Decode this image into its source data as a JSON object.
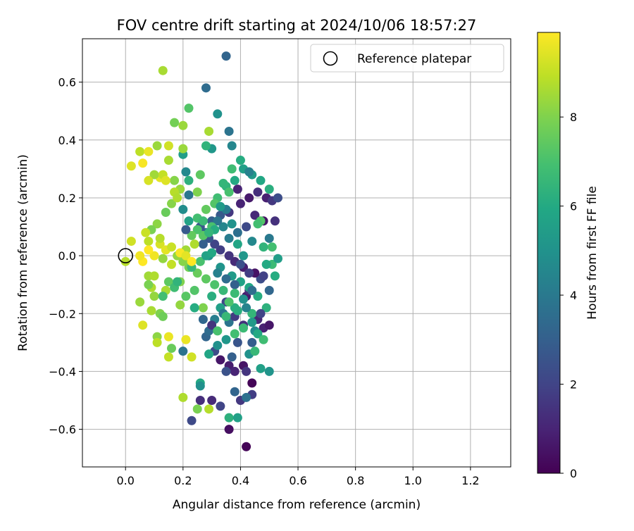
{
  "chart_data": {
    "type": "scatter",
    "title": "FOV centre drift starting at 2024/10/06 18:57:27",
    "xlabel": "Angular distance from reference (arcmin)",
    "ylabel": "Rotation from reference (arcmin)",
    "xlim": [
      -0.15,
      1.34
    ],
    "ylim": [
      -0.73,
      0.75
    ],
    "xticks": [
      0.0,
      0.2,
      0.4,
      0.6,
      0.8,
      1.0,
      1.2
    ],
    "xtick_labels": [
      "0.0",
      "0.2",
      "0.4",
      "0.6",
      "0.8",
      "1.0",
      "1.2"
    ],
    "yticks": [
      -0.6,
      -0.4,
      -0.2,
      0.0,
      0.2,
      0.4,
      0.6
    ],
    "ytick_labels": [
      "−0.6",
      "−0.4",
      "−0.2",
      "0.0",
      "0.2",
      "0.4",
      "0.6"
    ],
    "grid": true,
    "legend": {
      "position": "top-right",
      "entries": [
        "Reference platepar"
      ]
    },
    "reference_point": {
      "x": 0.0,
      "y": 0.0
    },
    "colorbar": {
      "label": "Hours from first FF file",
      "min": 0,
      "max": 9.9,
      "ticks": [
        0,
        2,
        4,
        6,
        8
      ],
      "tick_labels": [
        "0",
        "2",
        "4",
        "6",
        "8"
      ],
      "colormap": "viridis"
    },
    "points": [
      [
        0.42,
        -0.66,
        0.1
      ],
      [
        0.36,
        -0.6,
        0.4
      ],
      [
        0.44,
        -0.44,
        0.1
      ],
      [
        0.41,
        -0.38,
        0.5
      ],
      [
        0.33,
        -0.36,
        0.6
      ],
      [
        0.36,
        -0.38,
        0.8
      ],
      [
        0.38,
        -0.4,
        1.0
      ],
      [
        0.3,
        -0.5,
        1.2
      ],
      [
        0.26,
        -0.5,
        1.3
      ],
      [
        0.42,
        -0.4,
        1.5
      ],
      [
        0.4,
        -0.5,
        1.6
      ],
      [
        0.44,
        -0.48,
        1.8
      ],
      [
        0.33,
        -0.52,
        2.0
      ],
      [
        0.23,
        -0.57,
        2.2
      ],
      [
        0.35,
        -0.4,
        2.5
      ],
      [
        0.31,
        -0.33,
        2.3
      ],
      [
        0.39,
        -0.3,
        2.6
      ],
      [
        0.41,
        -0.24,
        1.4
      ],
      [
        0.46,
        -0.22,
        1.1
      ],
      [
        0.48,
        -0.25,
        0.9
      ],
      [
        0.5,
        -0.24,
        0.6
      ],
      [
        0.44,
        -0.3,
        2.9
      ],
      [
        0.37,
        -0.35,
        3.0
      ],
      [
        0.28,
        -0.28,
        3.2
      ],
      [
        0.29,
        -0.26,
        3.5
      ],
      [
        0.36,
        -0.23,
        3.8
      ],
      [
        0.31,
        -0.22,
        4.2
      ],
      [
        0.38,
        -0.21,
        1.7
      ],
      [
        0.35,
        -0.16,
        2.1
      ],
      [
        0.42,
        -0.14,
        0.7
      ],
      [
        0.43,
        -0.12,
        1.3
      ],
      [
        0.47,
        -0.08,
        2.4
      ],
      [
        0.48,
        -0.07,
        1.9
      ],
      [
        0.45,
        -0.06,
        0.5
      ],
      [
        0.41,
        -0.04,
        0.8
      ],
      [
        0.38,
        -0.02,
        1.2
      ],
      [
        0.36,
        0.0,
        1.5
      ],
      [
        0.33,
        0.02,
        1.8
      ],
      [
        0.31,
        0.04,
        2.0
      ],
      [
        0.29,
        0.06,
        2.6
      ],
      [
        0.27,
        0.04,
        3.0
      ],
      [
        0.28,
        0.08,
        3.4
      ],
      [
        0.26,
        0.1,
        2.7
      ],
      [
        0.3,
        0.12,
        3.1
      ],
      [
        0.33,
        0.14,
        2.8
      ],
      [
        0.36,
        0.15,
        1.6
      ],
      [
        0.4,
        0.18,
        1.0
      ],
      [
        0.43,
        0.2,
        0.7
      ],
      [
        0.46,
        0.22,
        1.3
      ],
      [
        0.49,
        0.2,
        0.9
      ],
      [
        0.51,
        0.19,
        1.6
      ],
      [
        0.48,
        0.12,
        0.5
      ],
      [
        0.45,
        0.14,
        1.1
      ],
      [
        0.42,
        0.1,
        2.2
      ],
      [
        0.39,
        0.08,
        3.6
      ],
      [
        0.36,
        0.06,
        4.1
      ],
      [
        0.34,
        0.1,
        4.5
      ],
      [
        0.32,
        0.12,
        3.9
      ],
      [
        0.29,
        0.0,
        4.8
      ],
      [
        0.33,
        -0.04,
        5.1
      ],
      [
        0.37,
        -0.07,
        5.4
      ],
      [
        0.4,
        -0.09,
        5.7
      ],
      [
        0.43,
        -0.11,
        5.9
      ],
      [
        0.46,
        -0.14,
        6.1
      ],
      [
        0.49,
        -0.18,
        6.3
      ],
      [
        0.44,
        -0.2,
        6.5
      ],
      [
        0.41,
        -0.25,
        6.7
      ],
      [
        0.38,
        -0.27,
        6.9
      ],
      [
        0.35,
        -0.29,
        5.2
      ],
      [
        0.32,
        -0.31,
        4.9
      ],
      [
        0.29,
        -0.34,
        5.8
      ],
      [
        0.26,
        -0.44,
        6.0
      ],
      [
        0.38,
        -0.18,
        6.2
      ],
      [
        0.34,
        -0.12,
        6.6
      ],
      [
        0.31,
        -0.1,
        7.1
      ],
      [
        0.28,
        -0.08,
        7.4
      ],
      [
        0.25,
        -0.06,
        7.6
      ],
      [
        0.22,
        -0.04,
        7.8
      ],
      [
        0.2,
        -0.02,
        8.1
      ],
      [
        0.18,
        0.0,
        8.3
      ],
      [
        0.21,
        0.02,
        8.5
      ],
      [
        0.24,
        0.04,
        8.7
      ],
      [
        0.27,
        0.07,
        7.3
      ],
      [
        0.3,
        0.1,
        7.0
      ],
      [
        0.32,
        0.2,
        6.8
      ],
      [
        0.35,
        0.24,
        6.4
      ],
      [
        0.38,
        0.26,
        6.0
      ],
      [
        0.41,
        0.3,
        5.6
      ],
      [
        0.44,
        0.28,
        5.3
      ],
      [
        0.47,
        0.26,
        5.9
      ],
      [
        0.5,
        0.23,
        6.2
      ],
      [
        0.53,
        0.2,
        2.3
      ],
      [
        0.52,
        0.12,
        1.4
      ],
      [
        0.5,
        0.06,
        4.0
      ],
      [
        0.48,
        0.03,
        6.4
      ],
      [
        0.51,
        -0.03,
        6.7
      ],
      [
        0.53,
        -0.01,
        5.5
      ],
      [
        0.52,
        -0.07,
        6.1
      ],
      [
        0.5,
        -0.12,
        3.3
      ],
      [
        0.47,
        -0.2,
        2.0
      ],
      [
        0.45,
        -0.26,
        4.7
      ],
      [
        0.43,
        -0.34,
        5.0
      ],
      [
        0.47,
        -0.39,
        5.6
      ],
      [
        0.5,
        -0.4,
        5.1
      ],
      [
        0.45,
        -0.33,
        6.6
      ],
      [
        0.35,
        0.69,
        3.2
      ],
      [
        0.28,
        0.58,
        3.5
      ],
      [
        0.32,
        0.49,
        5.0
      ],
      [
        0.36,
        0.43,
        3.8
      ],
      [
        0.37,
        0.38,
        4.5
      ],
      [
        0.3,
        0.37,
        5.2
      ],
      [
        0.28,
        0.38,
        6.4
      ],
      [
        0.4,
        0.33,
        6.1
      ],
      [
        0.43,
        0.29,
        4.3
      ],
      [
        0.37,
        0.3,
        6.8
      ],
      [
        0.34,
        0.25,
        6.5
      ],
      [
        0.36,
        0.22,
        7.0
      ],
      [
        0.39,
        0.23,
        1.0
      ],
      [
        0.31,
        0.18,
        7.2
      ],
      [
        0.28,
        0.16,
        7.5
      ],
      [
        0.25,
        0.13,
        6.9
      ],
      [
        0.22,
        0.12,
        5.7
      ],
      [
        0.2,
        0.16,
        4.8
      ],
      [
        0.22,
        0.21,
        3.9
      ],
      [
        0.21,
        0.29,
        4.6
      ],
      [
        0.22,
        0.26,
        6.3
      ],
      [
        0.2,
        0.35,
        5.5
      ],
      [
        0.22,
        0.51,
        7.2
      ],
      [
        0.2,
        0.45,
        8.4
      ],
      [
        0.17,
        0.46,
        7.8
      ],
      [
        0.13,
        0.64,
        8.6
      ],
      [
        0.29,
        0.43,
        8.6
      ],
      [
        0.26,
        0.28,
        7.4
      ],
      [
        0.25,
        0.22,
        8.0
      ],
      [
        0.19,
        0.23,
        8.4
      ],
      [
        0.17,
        0.22,
        8.8
      ],
      [
        0.16,
        0.18,
        8.1
      ],
      [
        0.14,
        0.15,
        7.6
      ],
      [
        0.11,
        0.11,
        8.2
      ],
      [
        0.09,
        0.09,
        7.9
      ],
      [
        0.08,
        0.05,
        8.9
      ],
      [
        0.07,
        0.08,
        9.1
      ],
      [
        0.12,
        0.04,
        9.3
      ],
      [
        0.14,
        0.02,
        9.5
      ],
      [
        0.1,
        0.0,
        9.7
      ],
      [
        0.06,
        -0.02,
        9.9
      ],
      [
        0.02,
        0.05,
        9.2
      ],
      [
        0.0,
        -0.02,
        8.8
      ],
      [
        0.08,
        -0.07,
        8.5
      ],
      [
        0.09,
        -0.11,
        8.7
      ],
      [
        0.1,
        -0.14,
        8.3
      ],
      [
        0.12,
        -0.2,
        8.0
      ],
      [
        0.13,
        -0.21,
        7.7
      ],
      [
        0.09,
        -0.19,
        8.6
      ],
      [
        0.05,
        -0.16,
        8.4
      ],
      [
        0.06,
        -0.24,
        9.4
      ],
      [
        0.11,
        -0.28,
        8.2
      ],
      [
        0.11,
        -0.3,
        8.9
      ],
      [
        0.15,
        -0.28,
        9.6
      ],
      [
        0.16,
        -0.32,
        7.6
      ],
      [
        0.15,
        -0.35,
        9.0
      ],
      [
        0.2,
        -0.33,
        3.8
      ],
      [
        0.23,
        -0.35,
        9.2
      ],
      [
        0.21,
        -0.29,
        9.6
      ],
      [
        0.2,
        -0.49,
        8.7
      ],
      [
        0.25,
        -0.53,
        7.9
      ],
      [
        0.29,
        -0.53,
        8.8
      ],
      [
        0.26,
        -0.45,
        4.9
      ],
      [
        0.36,
        -0.56,
        6.3
      ],
      [
        0.39,
        -0.56,
        5.6
      ],
      [
        0.42,
        -0.49,
        3.7
      ],
      [
        0.38,
        -0.47,
        3.2
      ],
      [
        0.02,
        0.31,
        9.4
      ],
      [
        0.05,
        0.36,
        8.9
      ],
      [
        0.08,
        0.36,
        9.6
      ],
      [
        0.06,
        0.32,
        9.8
      ],
      [
        0.11,
        0.38,
        8.4
      ],
      [
        0.15,
        0.38,
        9.2
      ],
      [
        0.12,
        0.27,
        9.5
      ],
      [
        0.1,
        0.28,
        8.5
      ],
      [
        0.08,
        0.26,
        9.3
      ],
      [
        0.13,
        0.28,
        9.0
      ],
      [
        0.15,
        0.33,
        8.6
      ],
      [
        0.17,
        0.26,
        8.1
      ],
      [
        0.18,
        0.2,
        8.7
      ],
      [
        0.14,
        0.26,
        9.4
      ],
      [
        0.2,
        0.37,
        8.4
      ],
      [
        0.19,
        -0.09,
        8.0
      ],
      [
        0.15,
        -0.09,
        7.4
      ],
      [
        0.17,
        -0.11,
        6.8
      ],
      [
        0.14,
        -0.12,
        8.6
      ],
      [
        0.19,
        -0.17,
        8.3
      ],
      [
        0.24,
        -0.12,
        7.2
      ],
      [
        0.27,
        -0.18,
        8.0
      ],
      [
        0.23,
        -0.04,
        6.6
      ],
      [
        0.26,
        -0.02,
        7.0
      ],
      [
        0.28,
        0.0,
        5.7
      ],
      [
        0.3,
        0.01,
        5.9
      ],
      [
        0.32,
        -0.06,
        4.3
      ],
      [
        0.35,
        -0.08,
        3.5
      ],
      [
        0.38,
        -0.1,
        3.0
      ],
      [
        0.4,
        -0.03,
        2.4
      ],
      [
        0.43,
        -0.06,
        1.8
      ],
      [
        0.44,
        -0.12,
        3.6
      ],
      [
        0.41,
        -0.15,
        5.0
      ],
      [
        0.3,
        -0.14,
        6.2
      ],
      [
        0.33,
        -0.18,
        5.6
      ],
      [
        0.36,
        -0.16,
        7.1
      ],
      [
        0.38,
        -0.13,
        6.7
      ],
      [
        0.34,
        -0.2,
        3.9
      ],
      [
        0.05,
        0.0,
        9.7
      ],
      [
        0.08,
        0.02,
        9.9
      ],
      [
        0.12,
        0.06,
        8.8
      ],
      [
        0.16,
        0.03,
        9.1
      ],
      [
        0.19,
        0.01,
        9.8
      ],
      [
        0.21,
        0.0,
        9.5
      ],
      [
        0.23,
        -0.02,
        9.9
      ],
      [
        0.16,
        -0.03,
        9.0
      ],
      [
        0.13,
        -0.01,
        8.3
      ],
      [
        0.1,
        -0.07,
        8.7
      ],
      [
        0.08,
        -0.1,
        7.9
      ],
      [
        0.13,
        -0.14,
        6.9
      ],
      [
        0.18,
        -0.09,
        6.4
      ],
      [
        0.21,
        -0.14,
        7.3
      ],
      [
        0.24,
        -0.18,
        6.1
      ],
      [
        0.27,
        -0.22,
        3.3
      ],
      [
        0.3,
        -0.24,
        1.5
      ],
      [
        0.32,
        -0.26,
        7.0
      ],
      [
        0.35,
        -0.21,
        6.6
      ],
      [
        0.39,
        -0.19,
        6.2
      ],
      [
        0.42,
        -0.18,
        4.4
      ],
      [
        0.44,
        -0.23,
        5.3
      ],
      [
        0.46,
        -0.27,
        6.0
      ],
      [
        0.48,
        -0.29,
        6.8
      ],
      [
        0.51,
        0.03,
        6.9
      ],
      [
        0.49,
        -0.03,
        6.0
      ],
      [
        0.47,
        0.12,
        7.2
      ],
      [
        0.46,
        0.11,
        6.9
      ],
      [
        0.44,
        0.05,
        4.6
      ],
      [
        0.41,
        0.0,
        5.2
      ],
      [
        0.39,
        0.04,
        5.8
      ],
      [
        0.37,
        0.11,
        5.0
      ],
      [
        0.35,
        0.16,
        4.1
      ],
      [
        0.33,
        0.17,
        5.4
      ],
      [
        0.31,
        0.09,
        6.1
      ],
      [
        0.29,
        0.08,
        6.5
      ],
      [
        0.27,
        0.12,
        6.7
      ],
      [
        0.25,
        0.09,
        7.1
      ],
      [
        0.23,
        0.07,
        7.5
      ],
      [
        0.21,
        0.09,
        2.8
      ]
    ]
  }
}
